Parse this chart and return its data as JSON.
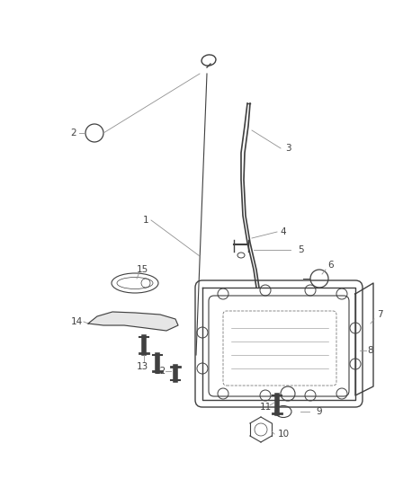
{
  "background_color": "#ffffff",
  "fig_width": 4.38,
  "fig_height": 5.33,
  "dpi": 100,
  "part_color": "#404040",
  "leader_color": "#909090",
  "label_font_size": 7.5
}
